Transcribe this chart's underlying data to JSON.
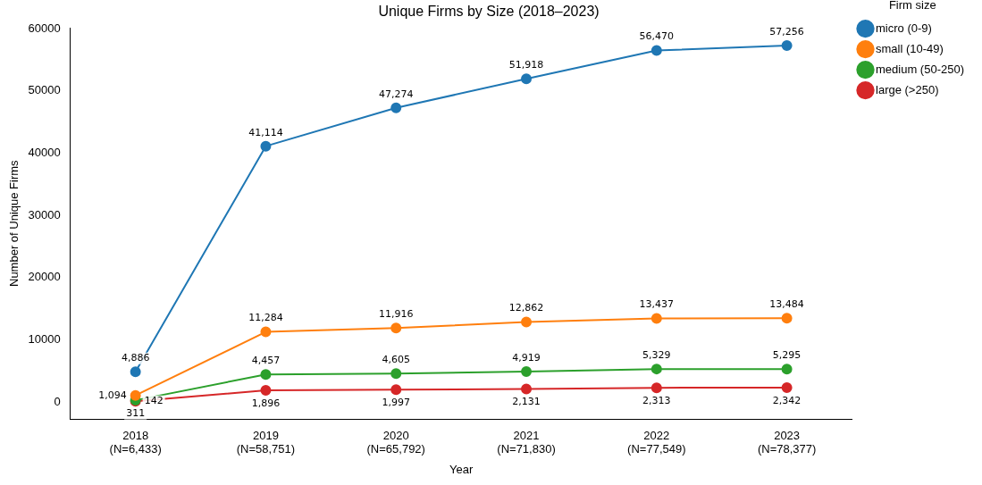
{
  "chart_data": {
    "type": "line",
    "title": "Unique Firms by Size (2018–2023)",
    "xlabel": "Year",
    "ylabel": "Number of Unique Firms",
    "legend_title": "Firm size",
    "categories": [
      "2018\n(N=6,433)",
      "2019\n(N=58,751)",
      "2020\n(N=65,792)",
      "2021\n(N=71,830)",
      "2022\n(N=77,549)",
      "2023\n(N=78,377)"
    ],
    "series": [
      {
        "name": "micro (0-9)",
        "color": "#1f77b4",
        "values": [
          4886,
          41114,
          47274,
          51918,
          56470,
          57256
        ],
        "value_labels": [
          "4,886",
          "41,114",
          "47,274",
          "51,918",
          "56,470",
          "57,256"
        ]
      },
      {
        "name": "small (10-49)",
        "color": "#ff7f0e",
        "values": [
          1094,
          11284,
          11916,
          12862,
          13437,
          13484
        ],
        "value_labels": [
          "1,094",
          "11,284",
          "11,916",
          "12,862",
          "13,437",
          "13,484"
        ]
      },
      {
        "name": "medium (50-250)",
        "color": "#2ca02c",
        "values": [
          311,
          4457,
          4605,
          4919,
          5329,
          5295
        ],
        "value_labels": [
          "311",
          "4,457",
          "4,605",
          "4,919",
          "5,329",
          "5,295"
        ]
      },
      {
        "name": "large (>250)",
        "color": "#d62728",
        "values": [
          142,
          1896,
          1997,
          2131,
          2313,
          2342
        ],
        "value_labels": [
          "142",
          "1,896",
          "1,997",
          "2,131",
          "2,313",
          "2,342"
        ]
      }
    ],
    "ylim": [
      -2714,
      60112
    ],
    "yticks": [
      0,
      10000,
      20000,
      30000,
      40000,
      50000,
      60000
    ],
    "grid": false,
    "legend": "top right",
    "marker": "circle",
    "line_style": "solid"
  }
}
